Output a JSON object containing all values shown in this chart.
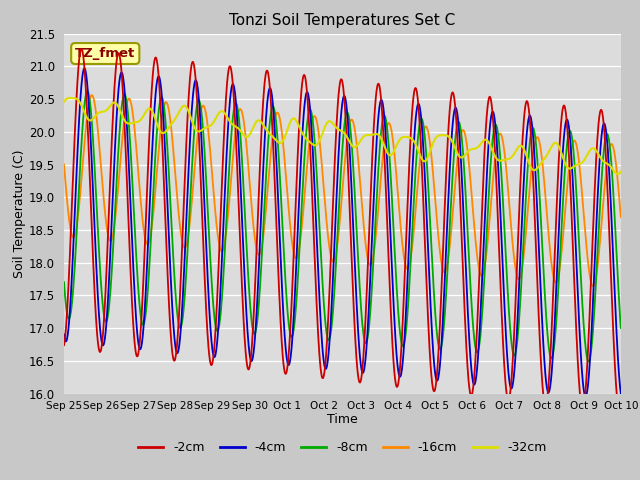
{
  "title": "Tonzi Soil Temperatures Set C",
  "xlabel": "Time",
  "ylabel": "Soil Temperature (C)",
  "ylim": [
    16.0,
    21.5
  ],
  "yticks": [
    16.0,
    16.5,
    17.0,
    17.5,
    18.0,
    18.5,
    19.0,
    19.5,
    20.0,
    20.5,
    21.0,
    21.5
  ],
  "x_tick_labels": [
    "Sep 25",
    "Sep 26",
    "Sep 27",
    "Sep 28",
    "Sep 29",
    "Sep 30",
    "Oct 1",
    "Oct 2",
    "Oct 3",
    "Oct 4",
    "Oct 5",
    "Oct 6",
    "Oct 7",
    "Oct 8",
    "Oct 9",
    "Oct 10"
  ],
  "colors": {
    "-2cm": "#cc0000",
    "-4cm": "#0000cc",
    "-8cm": "#00aa00",
    "-16cm": "#ff8800",
    "-32cm": "#dddd00"
  },
  "annotation_text": "TZ_fmet",
  "annotation_bg": "#ffffaa",
  "annotation_border": "#999900",
  "fig_bg": "#c8c8c8",
  "plot_bg": "#dcdcdc",
  "grid_color": "#ffffff",
  "n_points": 1500,
  "n_days": 15
}
